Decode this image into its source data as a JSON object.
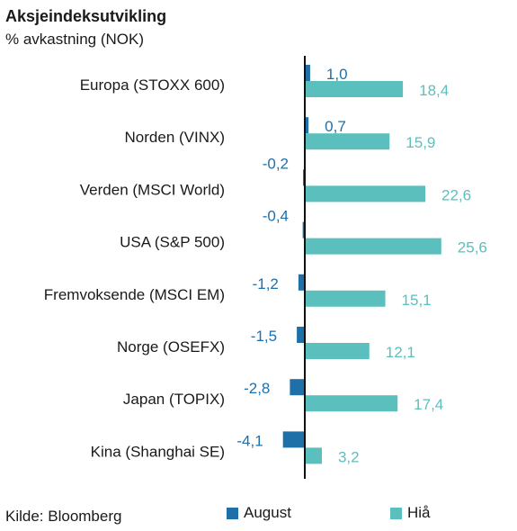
{
  "chart_data": {
    "type": "bar",
    "orientation": "horizontal",
    "title": "Aksjeindeksutvikling",
    "subtitle": "% avkastning (NOK)",
    "categories": [
      "Europa (STOXX 600)",
      "Norden (VINX)",
      "Verden (MSCI World)",
      "USA (S&P 500)",
      "Fremvoksende (MSCI EM)",
      "Norge (OSEFX)",
      "Japan (TOPIX)",
      "Kina (Shanghai SE)"
    ],
    "series": [
      {
        "name": "August",
        "color": "#1f6fa8",
        "values": [
          1.0,
          0.7,
          -0.2,
          -0.4,
          -1.2,
          -1.5,
          -2.8,
          -4.1
        ],
        "labels": [
          "1,0",
          "0,7",
          "-0,2",
          "-0,4",
          "-1,2",
          "-1,5",
          "-2,8",
          "-4,1"
        ]
      },
      {
        "name": "Hiå",
        "color": "#5bbfbd",
        "values": [
          18.4,
          15.9,
          22.6,
          25.6,
          15.1,
          12.1,
          17.4,
          3.2
        ],
        "labels": [
          "18,4",
          "15,9",
          "22,6",
          "25,6",
          "15,1",
          "12,1",
          "17,4",
          "3,2"
        ]
      }
    ],
    "legend_position": "bottom",
    "source": "Kilde: Bloomberg"
  }
}
